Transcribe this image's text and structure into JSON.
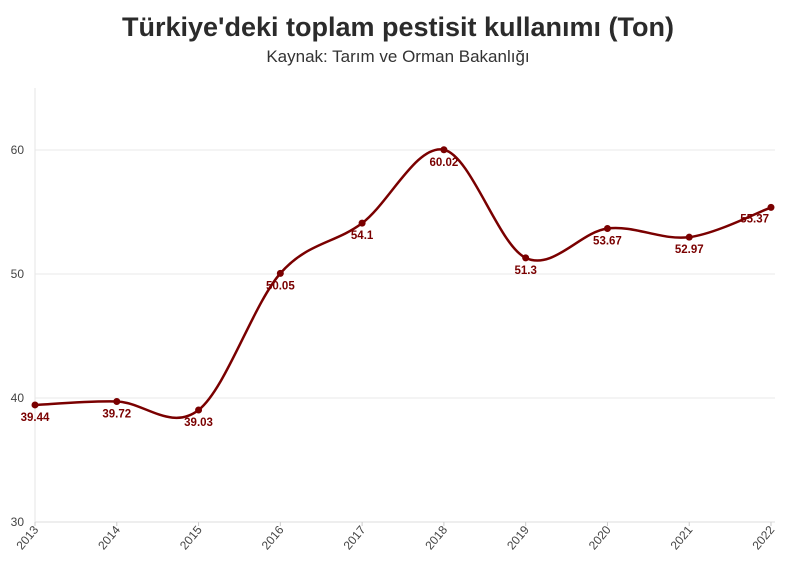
{
  "chart_data": {
    "type": "line",
    "title": "Türkiye'deki toplam pestisit kullanımı (Ton)",
    "subtitle": "Kaynak: Tarım ve Orman Bakanlığı",
    "xlabel": "",
    "ylabel": "",
    "x": [
      "2013",
      "2014",
      "2015",
      "2016",
      "2017",
      "2018",
      "2019",
      "2020",
      "2021",
      "2022"
    ],
    "values": [
      39.44,
      39.72,
      39.03,
      50.05,
      54.1,
      60.02,
      51.3,
      53.67,
      52.97,
      55.37
    ],
    "data_labels": [
      "39.44",
      "39.72",
      "39.03",
      "50.05",
      "54.1",
      "60.02",
      "51.3",
      "53.67",
      "52.97",
      "55.37"
    ],
    "ylim": [
      30,
      65
    ],
    "yticks": [
      "30",
      "40",
      "50",
      "60"
    ],
    "grid": true,
    "line_color": "#7a0000"
  }
}
